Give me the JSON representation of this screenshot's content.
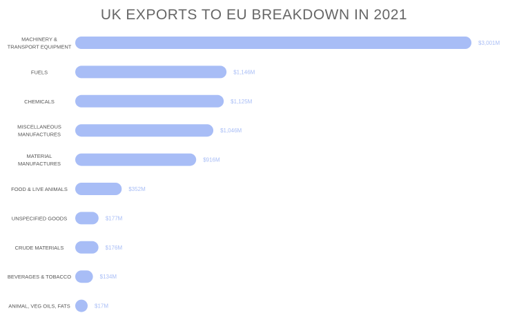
{
  "colors": {
    "bar": "#a8bdf6",
    "value_label": "#a8bdf6",
    "category_label": "#555555",
    "title": "#666666"
  },
  "chart_data": {
    "type": "bar",
    "orientation": "horizontal",
    "title": "UK EXPORTS TO EU BREAKDOWN IN 2021",
    "categories": [
      [
        "MACHINERY &",
        "TRANSPORT EQUIPMENT"
      ],
      [
        "FUELS"
      ],
      [
        "CHEMICALS"
      ],
      [
        "MISCELLANEOUS",
        "MANUFACTURES"
      ],
      [
        "MATERIAL",
        "MANUFACTURES"
      ],
      [
        "FOOD & LIVE ANIMALS"
      ],
      [
        "UNSPECIFIED GOODS"
      ],
      [
        "CRUDE MATERIALS"
      ],
      [
        "BEVERAGES & TOBACCO"
      ],
      [
        "ANIMAL, VEG OILS, FATS"
      ]
    ],
    "values": [
      3001,
      1146,
      1125,
      1046,
      916,
      352,
      177,
      176,
      134,
      17
    ],
    "value_labels": [
      "$3,001M",
      "$1,146M",
      "$1,125M",
      "$1,046M",
      "$916M",
      "$352M",
      "$177M",
      "$176M",
      "$134M",
      "$17M"
    ],
    "grid": false,
    "legend": "none"
  }
}
